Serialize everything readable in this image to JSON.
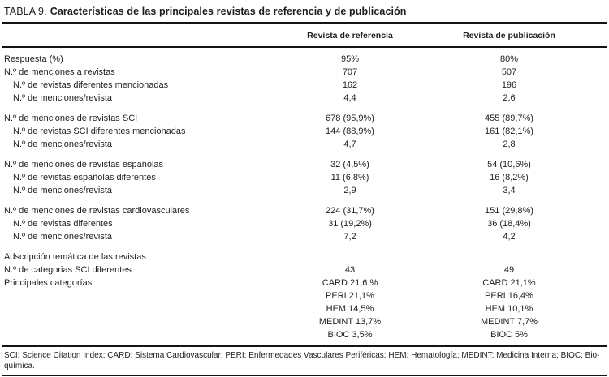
{
  "title": {
    "prefix": "TABLA 9.",
    "text": "Características de las principales revistas de referencia y de publicación"
  },
  "columns": [
    "Revista de referencia",
    "Revista de publicación"
  ],
  "table": {
    "rows": [
      {
        "label": "Respuesta (%)",
        "ref": "95%",
        "pub": "80%"
      },
      {
        "label": "N.º de menciones a revistas",
        "ref": "707",
        "pub": "507"
      },
      {
        "label": "N.º de revistas diferentes mencionadas",
        "ref": "162",
        "pub": "196"
      },
      {
        "label": "N.º de menciones/revista",
        "ref": "4,4",
        "pub": "2,6"
      },
      {
        "label": "N.º de menciones de revistas SCI",
        "ref": "678 (95,9%)",
        "pub": "455 (89,7%)"
      },
      {
        "label": "N.º de revistas SCI diferentes mencionadas",
        "ref": "144 (88,9%)",
        "pub": "161 (82,1%)"
      },
      {
        "label": "N.º de menciones/revista",
        "ref": "4,7",
        "pub": "2,8"
      },
      {
        "label": "N.º de menciones de revistas españolas",
        "ref": "32 (4,5%)",
        "pub": "54 (10,6%)"
      },
      {
        "label": "N.º de revistas españolas diferentes",
        "ref": "11 (6,8%)",
        "pub": "16 (8,2%)"
      },
      {
        "label": "N.º de menciones/revista",
        "ref": "2,9",
        "pub": "3,4"
      },
      {
        "label": "N.º de menciones de revistas cardiovasculares",
        "ref": "224 (31,7%)",
        "pub": "151 (29,8%)"
      },
      {
        "label": "N.º de revistas diferentes",
        "ref": "31 (19,2%)",
        "pub": "36 (18,4%)"
      },
      {
        "label": "N.º de menciones/revista",
        "ref": "7,2",
        "pub": "4,2"
      },
      {
        "label": "Adscripción temática de las revistas",
        "ref": "",
        "pub": ""
      },
      {
        "label": "N.º de categorias SCI diferentes",
        "ref": "43",
        "pub": "49"
      },
      {
        "label": "Principales categorías",
        "ref": "CARD 21,6 %",
        "pub": "CARD 21,1%"
      },
      {
        "label": "",
        "ref": "PERI 21,1%",
        "pub": "PERI 16,4%"
      },
      {
        "label": "",
        "ref": "HEM 14,5%",
        "pub": "HEM 10,1%"
      },
      {
        "label": "",
        "ref": "MEDINT 13,7%",
        "pub": "MEDINT 7,7%"
      },
      {
        "label": "",
        "ref": "BIOC 3,5%",
        "pub": "BIOC 5%"
      }
    ]
  },
  "footnote": {
    "line1": "SCI: Science Citation Index; CARD: Sistema Cardiovascular; PERI: Enfermedades Vasculares Periféricas; HEM: Hematología; MEDINT: Medicina Interna; BIOC: Bio-",
    "line2": "química."
  }
}
